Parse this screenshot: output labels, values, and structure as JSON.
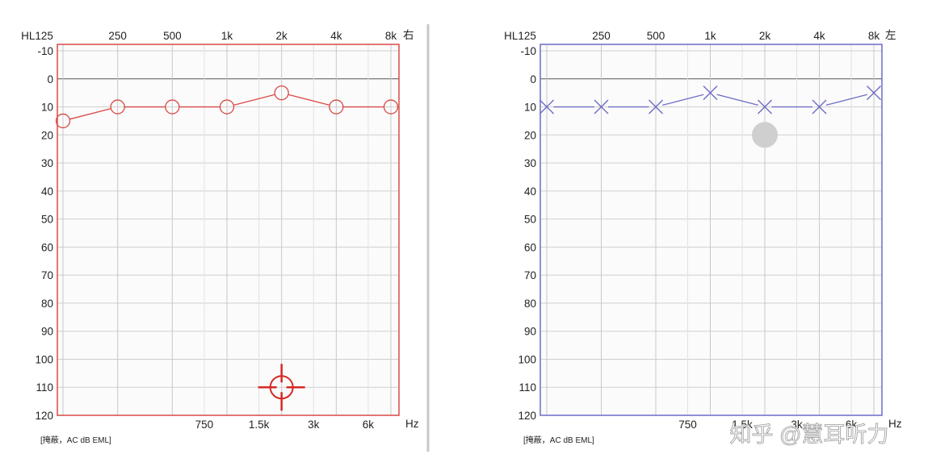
{
  "divider_color": "#c8c8c8",
  "watermark": "知乎 @慧耳听力",
  "chart_data": [
    {
      "type": "line",
      "ear_label": "右",
      "top_ticks": [
        "HL125",
        "250",
        "500",
        "1k",
        "2k",
        "4k",
        "8k"
      ],
      "bottom_ticks": [
        "750",
        "1.5k",
        "3k",
        "6k"
      ],
      "x_unit": "Hz",
      "y_ticks": [
        "-10",
        "0",
        "10",
        "20",
        "30",
        "40",
        "50",
        "60",
        "70",
        "80",
        "90",
        "100",
        "110",
        "120"
      ],
      "ylim": [
        -10,
        120
      ],
      "y_inverted": true,
      "grid": true,
      "footer_note": "[掩蔽，AC dB EML]",
      "color": "#d94a46",
      "marker": "circle",
      "series": [
        {
          "x": [
            125,
            250,
            500,
            1000,
            2000,
            4000,
            8000
          ],
          "y": [
            15,
            10,
            10,
            10,
            5,
            10,
            10
          ]
        }
      ],
      "crosshair_marker": {
        "icon": "crosshair-icon",
        "frequency": 2000,
        "level": 110
      }
    },
    {
      "type": "line",
      "ear_label": "左",
      "top_ticks": [
        "HL125",
        "250",
        "500",
        "1k",
        "2k",
        "4k",
        "8k"
      ],
      "bottom_ticks": [
        "750",
        "1.5k",
        "3k",
        "6k"
      ],
      "x_unit": "Hz",
      "y_ticks": [
        "-10",
        "0",
        "10",
        "20",
        "30",
        "40",
        "50",
        "60",
        "70",
        "80",
        "90",
        "100",
        "110",
        "120"
      ],
      "ylim": [
        -10,
        120
      ],
      "y_inverted": true,
      "grid": true,
      "footer_note": "[掩蔽，AC dB EML]",
      "color": "#6d6dc6",
      "marker": "cross",
      "series": [
        {
          "x": [
            125,
            250,
            500,
            1000,
            2000,
            4000,
            8000
          ],
          "y": [
            10,
            10,
            10,
            5,
            10,
            10,
            5
          ]
        }
      ],
      "cursor_dot": {
        "icon": "cursor-dot-icon",
        "frequency": 2000,
        "level": 20
      }
    }
  ]
}
